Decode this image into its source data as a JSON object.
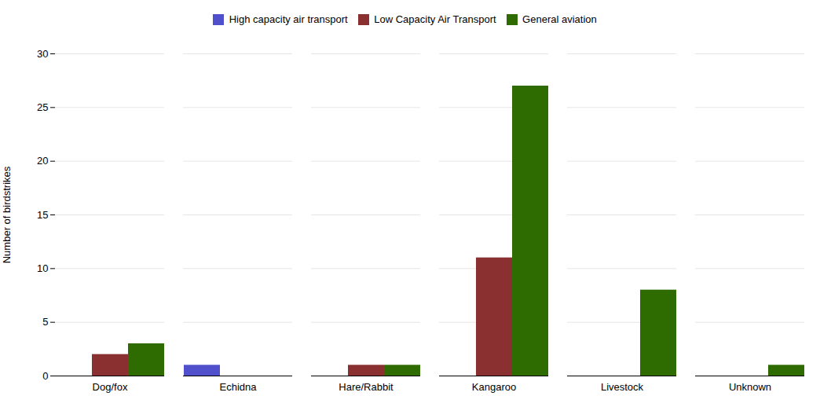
{
  "chart_data": {
    "type": "bar",
    "categories": [
      "Dog/fox",
      "Echidna",
      "Hare/Rabbit",
      "Kangaroo",
      "Livestock",
      "Unknown"
    ],
    "series": [
      {
        "name": "High capacity air transport",
        "color": "#5050CC",
        "values": [
          0,
          1,
          0,
          0,
          0,
          0
        ]
      },
      {
        "name": "Low Capacity Air Transport",
        "color": "#8B3030",
        "values": [
          2,
          0,
          1,
          11,
          0,
          0
        ]
      },
      {
        "name": "General aviation",
        "color": "#2E6B00",
        "values": [
          3,
          0,
          1,
          27,
          8,
          1
        ]
      }
    ],
    "ylabel": "Number of birdstrikes",
    "ylim": [
      0,
      30
    ],
    "yticks": [
      0,
      5,
      10,
      15,
      20,
      25,
      30
    ],
    "grid": true,
    "legend": "top"
  }
}
